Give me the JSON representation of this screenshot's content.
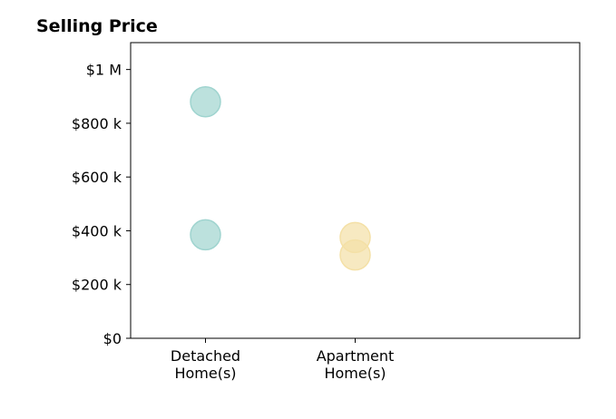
{
  "chart_data": {
    "type": "scatter",
    "title": "Selling Price",
    "xlabel": "",
    "ylabel": "",
    "categories": [
      [
        "Detached",
        "Home(s)"
      ],
      [
        "Apartment",
        "Home(s)"
      ]
    ],
    "xlim": [
      -0.5,
      2.5
    ],
    "ylim": [
      0,
      1100000
    ],
    "yticks": [
      {
        "value": 0,
        "label": "$0"
      },
      {
        "value": 200000,
        "label": "$200 k"
      },
      {
        "value": 400000,
        "label": "$400 k"
      },
      {
        "value": 600000,
        "label": "$600 k"
      },
      {
        "value": 800000,
        "label": "$800 k"
      },
      {
        "value": 1000000,
        "label": "$1 M"
      }
    ],
    "grid": false,
    "series": [
      {
        "category_index": 0,
        "values": [
          880000,
          385000
        ],
        "color": "#9fd4cf"
      },
      {
        "category_index": 1,
        "values": [
          375000,
          310000
        ],
        "color": "#f4e0a6"
      }
    ]
  }
}
